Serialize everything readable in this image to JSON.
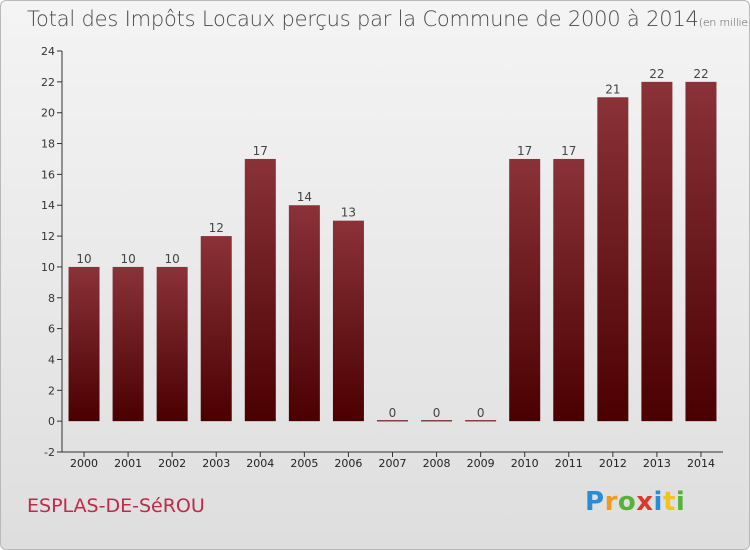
{
  "title": "Total des Impôts Locaux perçus par la Commune de 2000 à 2014",
  "unit_note": "(en milliers d'€)",
  "commune": "ESPLAS-DE-SéROU",
  "brand": {
    "letters": [
      "P",
      "r",
      "o",
      "x",
      "i",
      "t",
      "i"
    ],
    "colors": [
      "#2b8cd6",
      "#f09a1e",
      "#56b33a",
      "#e3362b",
      "#2b8cd6",
      "#f0c31e",
      "#56b33a"
    ]
  },
  "chart_data": {
    "type": "bar",
    "categories": [
      "2000",
      "2001",
      "2002",
      "2003",
      "2004",
      "2005",
      "2006",
      "2007",
      "2008",
      "2009",
      "2010",
      "2011",
      "2012",
      "2013",
      "2014"
    ],
    "values": [
      10,
      10,
      10,
      12,
      17,
      14,
      13,
      0,
      0,
      0,
      17,
      17,
      21,
      22,
      22
    ],
    "data_labels": [
      "10",
      "10",
      "10",
      "12",
      "17",
      "14",
      "13",
      "0",
      "0",
      "0",
      "17",
      "17",
      "21",
      "22",
      "22"
    ],
    "ylim": [
      -2,
      24
    ],
    "yticks": [
      -2,
      0,
      2,
      4,
      6,
      8,
      10,
      12,
      14,
      16,
      18,
      20,
      22,
      24
    ],
    "grid": false,
    "bar_color_top": "#8a3238",
    "bar_color_bottom": "#4a0000"
  }
}
